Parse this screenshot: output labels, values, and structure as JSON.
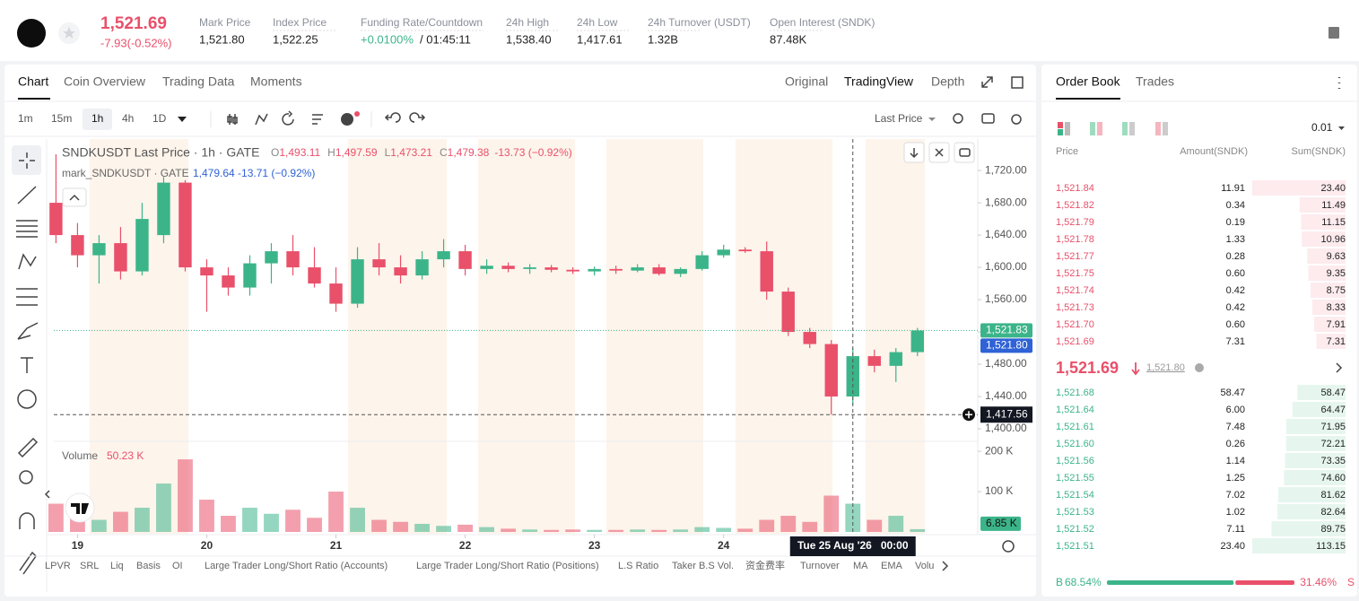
{
  "header": {
    "last_price": "1,521.69",
    "change": "-7.93(-0.52%)",
    "stats": [
      {
        "label": "Mark Price",
        "value": "1,521.80"
      },
      {
        "label": "Index Price",
        "value": "1,522.25"
      },
      {
        "label": "Funding Rate/Countdown",
        "value": "+0.0100%",
        "countdown": "/ 01:45:11"
      },
      {
        "label": "24h High",
        "value": "1,538.40"
      },
      {
        "label": "24h Low",
        "value": "1,417.61"
      },
      {
        "label": "24h Turnover (USDT)",
        "value": "1.32B"
      },
      {
        "label": "Open Interest (SNDK)",
        "value": "87.48K"
      }
    ]
  },
  "chart_tabs": [
    "Chart",
    "Coin Overview",
    "Trading Data",
    "Moments"
  ],
  "view_tabs": [
    "Original",
    "TradingView",
    "Depth"
  ],
  "timeframes": [
    "1m",
    "15m",
    "1h",
    "4h",
    "1D"
  ],
  "price_source": "Last Price",
  "indicators": [
    "LPVR",
    "SRL",
    "Liq",
    "Basis",
    "OI",
    "Large Trader Long/Short Ratio (Accounts)",
    "Large Trader Long/Short Ratio (Positions)",
    "L.S Ratio",
    "Taker B.S Vol.",
    "资金费率",
    "Turnover",
    "MA",
    "EMA",
    "Volu"
  ],
  "chart_data": {
    "type": "candlestick",
    "legend": {
      "title": "SNDKUSDT Last Price · 1h · GATE",
      "ohlc": [
        {
          "key": "O",
          "value": "1,493.11"
        },
        {
          "key": "H",
          "value": "1,497.59"
        },
        {
          "key": "L",
          "value": "1,473.21"
        },
        {
          "key": "C",
          "value": "1,479.38"
        }
      ],
      "change": "-13.73 (−0.92%)",
      "mark_title": "mark_SNDKUSDT · GATE",
      "mark_values": "1,479.64 -13.71 (−0.92%)",
      "volume_title": "Volume",
      "volume_value": "50.23 K"
    },
    "categories": [
      null,
      null,
      null,
      null,
      null,
      null,
      null,
      null,
      null,
      null,
      null,
      null,
      null,
      null,
      null,
      null,
      null,
      null,
      null,
      null,
      null,
      null,
      null,
      null,
      null,
      null,
      null,
      null,
      null,
      null,
      null,
      null,
      null,
      null,
      null,
      null,
      null,
      null,
      null,
      null,
      null
    ],
    "open": [
      1680,
      1640,
      1615,
      1630,
      1595,
      1640,
      1705,
      1600,
      1590,
      1575,
      1605,
      1620,
      1600,
      1580,
      1555,
      1610,
      1600,
      1590,
      1610,
      1620,
      1598,
      1602,
      1598,
      1600,
      1597,
      1595,
      1598,
      1596,
      1600,
      1592,
      1598,
      1615,
      1622,
      1620,
      1570,
      1520,
      1505,
      1440,
      1490,
      1478,
      1495
    ],
    "high": [
      1740,
      1655,
      1640,
      1650,
      1680,
      1712,
      1708,
      1610,
      1600,
      1615,
      1630,
      1640,
      1625,
      1600,
      1625,
      1630,
      1615,
      1620,
      1635,
      1628,
      1610,
      1606,
      1604,
      1603,
      1600,
      1601,
      1602,
      1604,
      1604,
      1600,
      1620,
      1628,
      1625,
      1632,
      1575,
      1525,
      1510,
      1500,
      1498,
      1500,
      1525
    ],
    "low": [
      1630,
      1600,
      1580,
      1585,
      1590,
      1630,
      1595,
      1545,
      1565,
      1565,
      1580,
      1590,
      1575,
      1545,
      1550,
      1590,
      1580,
      1585,
      1600,
      1590,
      1592,
      1594,
      1592,
      1594,
      1592,
      1590,
      1592,
      1594,
      1590,
      1588,
      1596,
      1612,
      1618,
      1560,
      1515,
      1500,
      1417.56,
      1430,
      1470,
      1458,
      1490
    ],
    "close": [
      1640,
      1615,
      1630,
      1595,
      1660,
      1705,
      1600,
      1590,
      1575,
      1605,
      1620,
      1600,
      1580,
      1555,
      1610,
      1600,
      1590,
      1610,
      1620,
      1598,
      1602,
      1598,
      1600,
      1597,
      1595,
      1598,
      1596,
      1600,
      1592,
      1598,
      1615,
      1622,
      1620,
      1570,
      1520,
      1505,
      1440,
      1490,
      1478,
      1495,
      1521.83
    ],
    "volume": [
      70000,
      40000,
      30000,
      50000,
      60000,
      120000,
      180000,
      80000,
      40000,
      60000,
      45000,
      55000,
      35000,
      100000,
      60000,
      30000,
      25000,
      20000,
      15000,
      18000,
      12000,
      8000,
      6000,
      5000,
      6000,
      5000,
      5000,
      6000,
      5000,
      6000,
      12000,
      10000,
      8000,
      30000,
      40000,
      25000,
      90000,
      70000,
      30000,
      40000,
      6850
    ],
    "up_color": "#3cb48a",
    "down_color": "#e9506a",
    "xlim": [
      -0.1,
      42.8
    ],
    "xticks": [
      {
        "value": 1,
        "label": "19"
      },
      {
        "value": 7,
        "label": "20"
      },
      {
        "value": 13,
        "label": "21"
      },
      {
        "value": 19,
        "label": "22"
      },
      {
        "value": 25,
        "label": "23"
      },
      {
        "value": 31,
        "label": "24"
      }
    ],
    "ylim": [
      1386.7,
      1759
    ],
    "yticks": [
      {
        "value": 1400,
        "label": "1,400.00"
      },
      {
        "value": 1440,
        "label": "1,440.00"
      },
      {
        "value": 1480,
        "label": "1,480.00"
      },
      {
        "value": 1520,
        "label": "1,520.00"
      },
      {
        "value": 1560,
        "label": "1,560.00"
      },
      {
        "value": 1600,
        "label": "1,600.00"
      },
      {
        "value": 1640,
        "label": "1,640.00"
      },
      {
        "value": 1680,
        "label": "1,680.00"
      },
      {
        "value": 1720,
        "label": "1,720.00"
      }
    ],
    "volume_ylim": [
      0,
      218000
    ],
    "volume_yticks": [
      {
        "value": 100000,
        "label": "100 K"
      },
      {
        "value": 200000,
        "label": "200 K"
      }
    ],
    "last_price_badge": {
      "value": 1521.83,
      "label": "1,521.83"
    },
    "mark_price_badge": {
      "value": 1521.8,
      "label": "1,521.80"
    },
    "volume_badge": {
      "value": 6850,
      "label": "6.85 K"
    },
    "crosshair": {
      "price": {
        "value": 1417.56,
        "label": "1,417.56"
      },
      "time": {
        "value": 37,
        "label": "Tue 25 Aug '26   00:00"
      }
    }
  },
  "order_book": {
    "tabs": [
      "Order Book",
      "Trades"
    ],
    "precision": "0.01",
    "headers": [
      "Price",
      "Amount(SNDK)",
      "Sum(SNDK)"
    ],
    "asks": [
      [
        "1,521.84",
        "11.91",
        "23.40"
      ],
      [
        "1,521.82",
        "0.34",
        "11.49"
      ],
      [
        "1,521.79",
        "0.19",
        "11.15"
      ],
      [
        "1,521.78",
        "1.33",
        "10.96"
      ],
      [
        "1,521.77",
        "0.28",
        "9.63"
      ],
      [
        "1,521.75",
        "0.60",
        "9.35"
      ],
      [
        "1,521.74",
        "0.42",
        "8.75"
      ],
      [
        "1,521.73",
        "0.42",
        "8.33"
      ],
      [
        "1,521.70",
        "0.60",
        "7.91"
      ],
      [
        "1,521.69",
        "7.31",
        "7.31"
      ]
    ],
    "mid_price": "1,521.69",
    "mid_mark": "1,521.80",
    "bids": [
      [
        "1,521.68",
        "58.47",
        "58.47"
      ],
      [
        "1,521.64",
        "6.00",
        "64.47"
      ],
      [
        "1,521.61",
        "7.48",
        "71.95"
      ],
      [
        "1,521.60",
        "0.26",
        "72.21"
      ],
      [
        "1,521.56",
        "1.14",
        "73.35"
      ],
      [
        "1,521.55",
        "1.25",
        "74.60"
      ],
      [
        "1,521.54",
        "7.02",
        "81.62"
      ],
      [
        "1,521.53",
        "1.02",
        "82.64"
      ],
      [
        "1,521.52",
        "7.11",
        "89.75"
      ],
      [
        "1,521.51",
        "23.40",
        "113.15"
      ]
    ],
    "buy_label": "B",
    "buy_ratio": "68.54%",
    "sell_ratio": "31.46%",
    "sell_label": "S"
  }
}
